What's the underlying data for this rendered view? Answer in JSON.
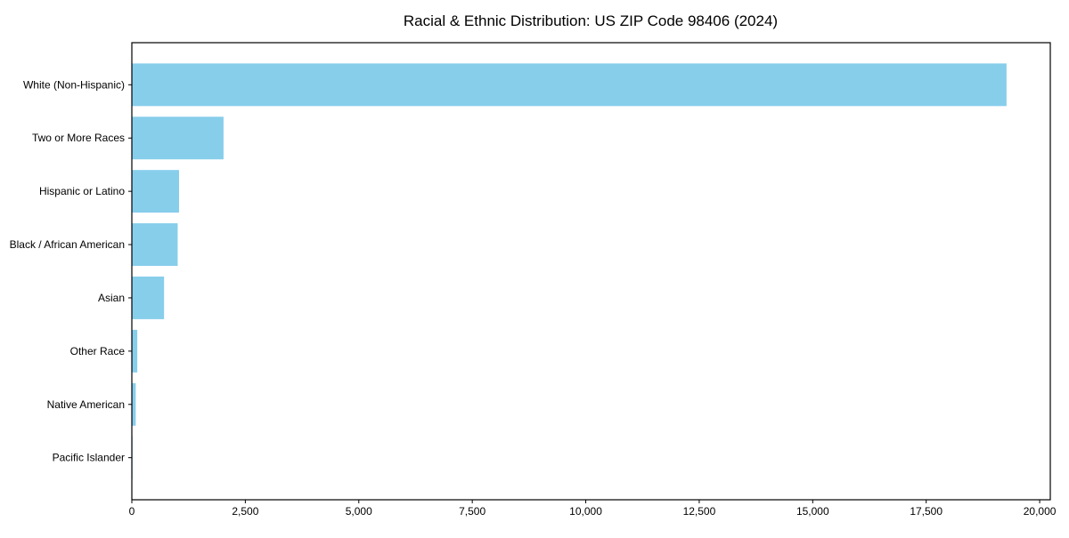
{
  "chart_data": {
    "type": "bar",
    "orientation": "horizontal",
    "title": "Racial & Ethnic Distribution: US ZIP Code 98406 (2024)",
    "categories": [
      "White (Non-Hispanic)",
      "Two or More Races",
      "Hispanic or Latino",
      "Black / African American",
      "Asian",
      "Other Race",
      "Native American",
      "Pacific Islander"
    ],
    "values": [
      19270,
      2020,
      1040,
      1010,
      710,
      120,
      85,
      15
    ],
    "xlabel": "",
    "ylabel": "",
    "xlim": [
      0,
      20234
    ],
    "xticks": [
      0,
      2500,
      5000,
      7500,
      10000,
      12500,
      15000,
      17500,
      20000
    ],
    "xtick_labels": [
      "0",
      "2,500",
      "5,000",
      "7,500",
      "10,000",
      "12,500",
      "15,000",
      "17,500",
      "20,000"
    ],
    "grid": false,
    "legend": null,
    "bar_color": "#87CEEB",
    "axis_color": "#000000",
    "text_color": "#000000"
  }
}
